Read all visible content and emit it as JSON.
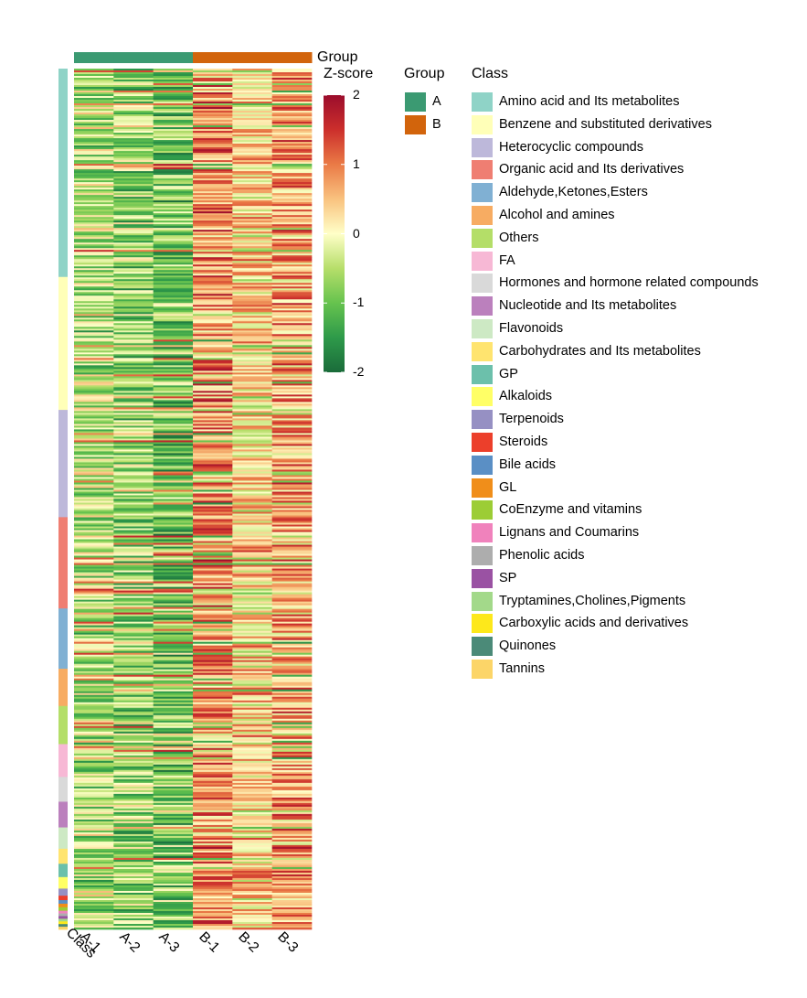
{
  "chart_data": {
    "type": "heatmap",
    "columns": [
      "A-1",
      "A-2",
      "A-3",
      "B-1",
      "B-2",
      "B-3"
    ],
    "row_annotation_label": "Class",
    "column_annotation": {
      "title": "Group",
      "values": [
        "A",
        "A",
        "A",
        "B",
        "B",
        "B"
      ]
    },
    "colorbar": {
      "title": "Z-score",
      "min": -2,
      "max": 2,
      "ticks": [
        "2",
        "1",
        "0",
        "-1",
        "-2"
      ],
      "tick_values": [
        2,
        1,
        0,
        -1,
        -2
      ],
      "colors": [
        "#1a6b3a",
        "#2e9a4a",
        "#66c34e",
        "#b6de6a",
        "#ffffc8",
        "#f9c27f",
        "#ea7a46",
        "#cc2f2c",
        "#9b0d2c"
      ]
    },
    "group_legend": {
      "title": "Group",
      "items": [
        {
          "label": "A",
          "color": "#3b9a72"
        },
        {
          "label": "B",
          "color": "#d2640c"
        }
      ]
    },
    "class_legend": {
      "title": "Class",
      "items": [
        {
          "label": "Amino acid and Its metabolites",
          "color": "#8fd3c7",
          "fraction": 0.235
        },
        {
          "label": "Benzene and substituted derivatives",
          "color": "#ffffb8",
          "fraction": 0.15
        },
        {
          "label": "Heterocyclic compounds",
          "color": "#bdb8da",
          "fraction": 0.121
        },
        {
          "label": "Organic acid and Its derivatives",
          "color": "#ef7e72",
          "fraction": 0.103
        },
        {
          "label": "Aldehyde,Ketones,Esters",
          "color": "#80b0d3",
          "fraction": 0.068
        },
        {
          "label": "Alcohol and amines",
          "color": "#f7ac62",
          "fraction": 0.042
        },
        {
          "label": "Others",
          "color": "#b4de68",
          "fraction": 0.043
        },
        {
          "label": "FA",
          "color": "#f7b8d5",
          "fraction": 0.037
        },
        {
          "label": "Hormones and hormone related compounds",
          "color": "#d9d9d9",
          "fraction": 0.028
        },
        {
          "label": "Nucleotide and Its metabolites",
          "color": "#bb80bd",
          "fraction": 0.029
        },
        {
          "label": "Flavonoids",
          "color": "#cde9c4",
          "fraction": 0.024
        },
        {
          "label": "Carbohydrates and Its metabolites",
          "color": "#ffe46f",
          "fraction": 0.017
        },
        {
          "label": "GP",
          "color": "#6cc0ab",
          "fraction": 0.015
        },
        {
          "label": "Alkaloids",
          "color": "#ffff66",
          "fraction": 0.013
        },
        {
          "label": "Terpenoids",
          "color": "#9690c3",
          "fraction": 0.008
        },
        {
          "label": "Steroids",
          "color": "#ec3f2b",
          "fraction": 0.005
        },
        {
          "label": "Bile acids",
          "color": "#5a8fc5",
          "fraction": 0.004
        },
        {
          "label": "GL",
          "color": "#f08e1a",
          "fraction": 0.004
        },
        {
          "label": "CoEnzyme and vitamins",
          "color": "#9ccd35",
          "fraction": 0.004
        },
        {
          "label": "Lignans and Coumarins",
          "color": "#f082bc",
          "fraction": 0.003
        },
        {
          "label": "Phenolic acids",
          "color": "#adadad",
          "fraction": 0.003
        },
        {
          "label": "SP",
          "color": "#9a52a3",
          "fraction": 0.003
        },
        {
          "label": "Tryptamines,Cholines,Pigments",
          "color": "#a3d98a",
          "fraction": 0.003
        },
        {
          "label": "Carboxylic acids and derivatives",
          "color": "#fde81b",
          "fraction": 0.003
        },
        {
          "label": "Quinones",
          "color": "#4b8a78",
          "fraction": 0.003
        },
        {
          "label": "Tannins",
          "color": "#fcd568",
          "fraction": 0.003
        }
      ]
    }
  }
}
